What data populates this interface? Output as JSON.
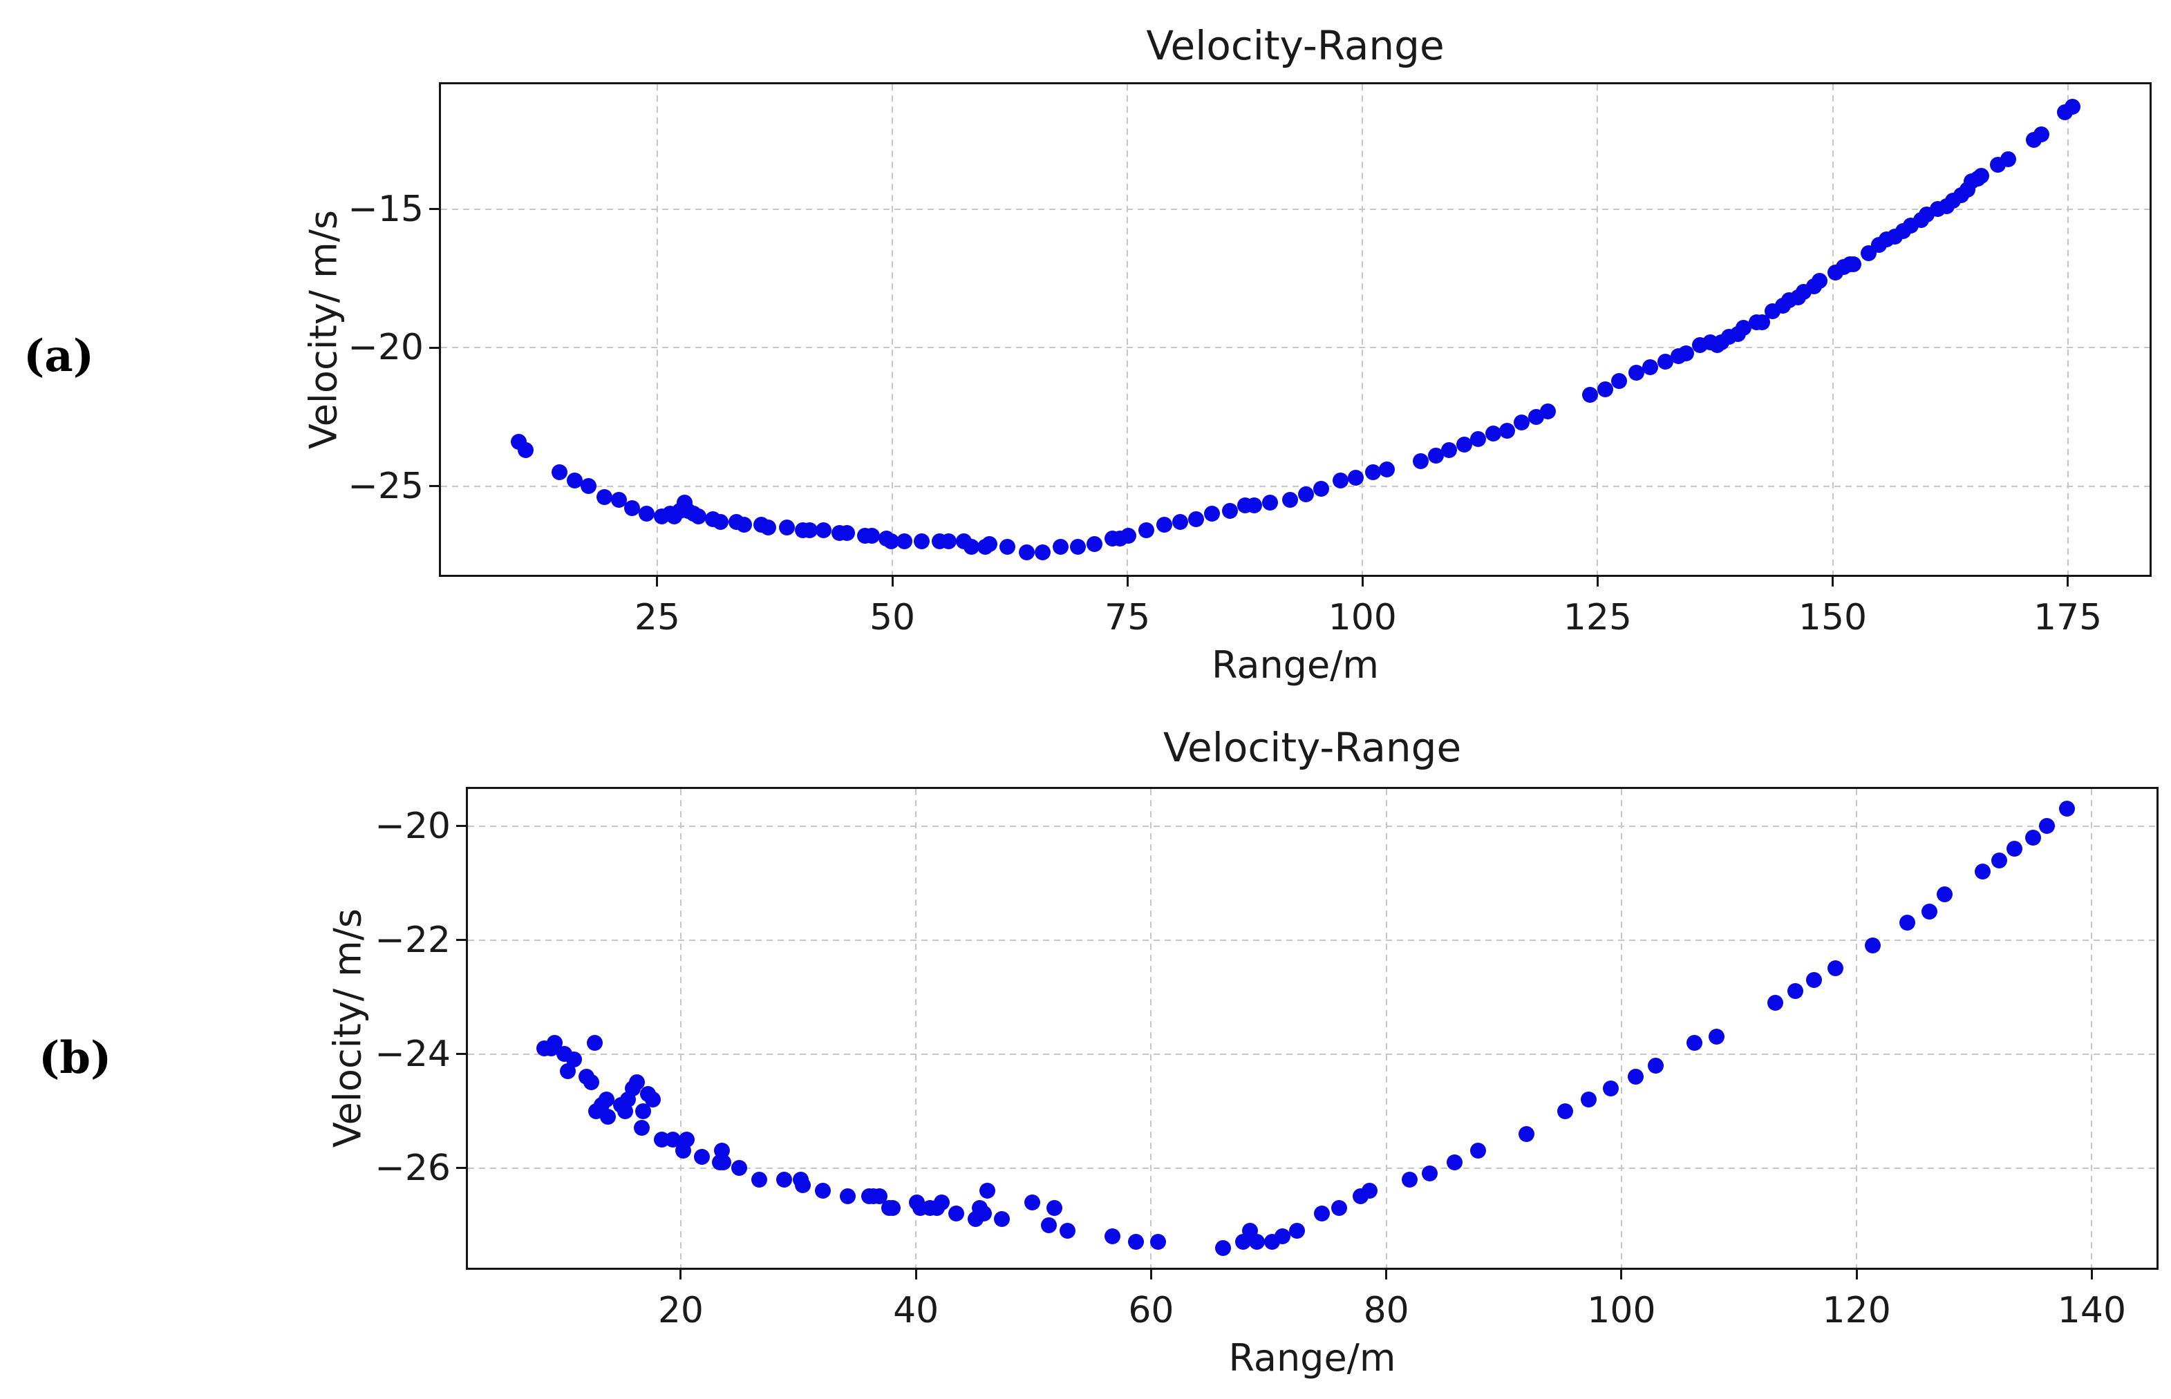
{
  "page": {
    "background": "#ffffff"
  },
  "panels": [
    {
      "label": "(a)"
    },
    {
      "label": "(b)"
    }
  ],
  "chart_data": [
    {
      "type": "scatter",
      "title": "Velocity-Range",
      "xlabel": "Range/m",
      "ylabel": "Velocity/ m/s",
      "legend": null,
      "grid": true,
      "marker_color": "#0707e8",
      "xlim": [
        2.0,
        183.7
      ],
      "ylim": [
        -28.2,
        -10.5
      ],
      "xticks": [
        25,
        50,
        75,
        100,
        125,
        150,
        175
      ],
      "xtick_labels": [
        "25",
        "50",
        "75",
        "100",
        "125",
        "150",
        "175"
      ],
      "yticks": [
        -15,
        -20,
        -25
      ],
      "ytick_labels": [
        "−15",
        "−20",
        "−25"
      ],
      "points": [
        [
          10.3,
          -23.4
        ],
        [
          11.0,
          -23.7
        ],
        [
          14.6,
          -24.5
        ],
        [
          16.2,
          -24.8
        ],
        [
          17.7,
          -25.0
        ],
        [
          19.4,
          -25.4
        ],
        [
          20.9,
          -25.5
        ],
        [
          22.3,
          -25.8
        ],
        [
          23.9,
          -26.0
        ],
        [
          25.5,
          -26.1
        ],
        [
          26.4,
          -26.0
        ],
        [
          26.8,
          -26.1
        ],
        [
          27.4,
          -25.9
        ],
        [
          27.9,
          -25.6
        ],
        [
          28.3,
          -25.9
        ],
        [
          28.9,
          -26.0
        ],
        [
          29.4,
          -26.1
        ],
        [
          30.9,
          -26.2
        ],
        [
          31.7,
          -26.3
        ],
        [
          33.4,
          -26.3
        ],
        [
          34.2,
          -26.4
        ],
        [
          36.1,
          -26.4
        ],
        [
          36.8,
          -26.5
        ],
        [
          38.8,
          -26.5
        ],
        [
          40.5,
          -26.6
        ],
        [
          41.2,
          -26.6
        ],
        [
          42.7,
          -26.6
        ],
        [
          44.4,
          -26.7
        ],
        [
          45.2,
          -26.7
        ],
        [
          47.1,
          -26.8
        ],
        [
          47.8,
          -26.8
        ],
        [
          49.4,
          -26.9
        ],
        [
          49.9,
          -27.0
        ],
        [
          51.3,
          -27.0
        ],
        [
          53.1,
          -27.0
        ],
        [
          55.0,
          -27.0
        ],
        [
          56.0,
          -27.0
        ],
        [
          57.6,
          -27.0
        ],
        [
          58.4,
          -27.2
        ],
        [
          59.9,
          -27.2
        ],
        [
          60.3,
          -27.1
        ],
        [
          62.2,
          -27.2
        ],
        [
          64.3,
          -27.4
        ],
        [
          66.0,
          -27.4
        ],
        [
          67.9,
          -27.2
        ],
        [
          69.7,
          -27.2
        ],
        [
          71.5,
          -27.1
        ],
        [
          73.4,
          -26.9
        ],
        [
          74.2,
          -26.9
        ],
        [
          75.1,
          -26.8
        ],
        [
          77.0,
          -26.6
        ],
        [
          78.9,
          -26.4
        ],
        [
          80.6,
          -26.3
        ],
        [
          82.3,
          -26.2
        ],
        [
          84.0,
          -26.0
        ],
        [
          85.9,
          -25.9
        ],
        [
          87.5,
          -25.7
        ],
        [
          88.5,
          -25.7
        ],
        [
          90.2,
          -25.6
        ],
        [
          92.3,
          -25.5
        ],
        [
          94.0,
          -25.3
        ],
        [
          95.6,
          -25.1
        ],
        [
          97.7,
          -24.8
        ],
        [
          99.3,
          -24.7
        ],
        [
          101.1,
          -24.5
        ],
        [
          102.6,
          -24.4
        ],
        [
          106.2,
          -24.1
        ],
        [
          107.8,
          -23.9
        ],
        [
          109.2,
          -23.7
        ],
        [
          110.8,
          -23.5
        ],
        [
          112.3,
          -23.3
        ],
        [
          113.9,
          -23.1
        ],
        [
          115.4,
          -23.0
        ],
        [
          116.9,
          -22.7
        ],
        [
          118.5,
          -22.5
        ],
        [
          119.7,
          -22.3
        ],
        [
          124.2,
          -21.7
        ],
        [
          125.8,
          -21.5
        ],
        [
          127.3,
          -21.2
        ],
        [
          129.1,
          -20.9
        ],
        [
          130.6,
          -20.7
        ],
        [
          132.2,
          -20.5
        ],
        [
          133.6,
          -20.3
        ],
        [
          134.4,
          -20.2
        ],
        [
          135.9,
          -19.9
        ],
        [
          137.0,
          -19.8
        ],
        [
          137.7,
          -19.9
        ],
        [
          138.2,
          -19.8
        ],
        [
          139.0,
          -19.6
        ],
        [
          139.9,
          -19.5
        ],
        [
          140.5,
          -19.3
        ],
        [
          141.9,
          -19.1
        ],
        [
          142.5,
          -19.1
        ],
        [
          143.6,
          -18.7
        ],
        [
          144.7,
          -18.5
        ],
        [
          145.4,
          -18.3
        ],
        [
          146.3,
          -18.2
        ],
        [
          146.9,
          -18.0
        ],
        [
          148.0,
          -17.8
        ],
        [
          148.6,
          -17.6
        ],
        [
          150.3,
          -17.3
        ],
        [
          151.2,
          -17.1
        ],
        [
          151.8,
          -17.0
        ],
        [
          152.2,
          -17.0
        ],
        [
          153.8,
          -16.6
        ],
        [
          154.9,
          -16.3
        ],
        [
          155.7,
          -16.1
        ],
        [
          156.6,
          -16.0
        ],
        [
          157.5,
          -15.8
        ],
        [
          158.3,
          -15.6
        ],
        [
          159.4,
          -15.4
        ],
        [
          160.0,
          -15.2
        ],
        [
          161.2,
          -15.0
        ],
        [
          162.1,
          -14.9
        ],
        [
          162.8,
          -14.7
        ],
        [
          163.7,
          -14.5
        ],
        [
          164.3,
          -14.3
        ],
        [
          164.8,
          -14.0
        ],
        [
          165.4,
          -13.9
        ],
        [
          165.8,
          -13.8
        ],
        [
          167.6,
          -13.4
        ],
        [
          168.7,
          -13.2
        ],
        [
          171.4,
          -12.5
        ],
        [
          172.2,
          -12.3
        ],
        [
          174.7,
          -11.5
        ],
        [
          175.5,
          -11.3
        ]
      ]
    },
    {
      "type": "scatter",
      "title": "Velocity-Range",
      "xlabel": "Range/m",
      "ylabel": "Velocity/ m/s",
      "legend": null,
      "grid": true,
      "marker_color": "#0707e8",
      "xlim": [
        1.9,
        145.5
      ],
      "ylim": [
        -27.75,
        -19.35
      ],
      "xticks": [
        20,
        40,
        60,
        80,
        100,
        120,
        140
      ],
      "xtick_labels": [
        "20",
        "40",
        "60",
        "80",
        "100",
        "120",
        "140"
      ],
      "yticks": [
        -20,
        -22,
        -24,
        -26
      ],
      "ytick_labels": [
        "−20",
        "−22",
        "−24",
        "−26"
      ],
      "points": [
        [
          8.4,
          -23.9
        ],
        [
          9.0,
          -23.9
        ],
        [
          9.3,
          -23.8
        ],
        [
          10.1,
          -24.0
        ],
        [
          10.4,
          -24.3
        ],
        [
          10.9,
          -24.1
        ],
        [
          12.0,
          -24.4
        ],
        [
          12.4,
          -24.5
        ],
        [
          12.7,
          -23.8
        ],
        [
          12.8,
          -25.0
        ],
        [
          13.3,
          -24.9
        ],
        [
          13.7,
          -24.8
        ],
        [
          13.8,
          -25.1
        ],
        [
          14.9,
          -24.9
        ],
        [
          15.3,
          -25.0
        ],
        [
          15.5,
          -24.8
        ],
        [
          15.9,
          -24.6
        ],
        [
          16.3,
          -24.5
        ],
        [
          16.7,
          -25.3
        ],
        [
          16.8,
          -25.0
        ],
        [
          17.2,
          -24.7
        ],
        [
          17.6,
          -24.8
        ],
        [
          18.4,
          -25.5
        ],
        [
          19.3,
          -25.5
        ],
        [
          20.2,
          -25.7
        ],
        [
          20.5,
          -25.5
        ],
        [
          21.8,
          -25.8
        ],
        [
          23.3,
          -25.9
        ],
        [
          23.5,
          -25.7
        ],
        [
          23.6,
          -25.9
        ],
        [
          25.0,
          -26.0
        ],
        [
          26.7,
          -26.2
        ],
        [
          28.8,
          -26.2
        ],
        [
          30.2,
          -26.2
        ],
        [
          30.4,
          -26.3
        ],
        [
          32.1,
          -26.4
        ],
        [
          34.2,
          -26.5
        ],
        [
          36.0,
          -26.5
        ],
        [
          36.4,
          -26.5
        ],
        [
          36.9,
          -26.5
        ],
        [
          37.7,
          -26.7
        ],
        [
          38.0,
          -26.7
        ],
        [
          40.1,
          -26.6
        ],
        [
          40.4,
          -26.7
        ],
        [
          41.2,
          -26.7
        ],
        [
          41.8,
          -26.7
        ],
        [
          42.2,
          -26.6
        ],
        [
          43.4,
          -26.8
        ],
        [
          45.1,
          -26.9
        ],
        [
          45.4,
          -26.7
        ],
        [
          45.8,
          -26.8
        ],
        [
          46.1,
          -26.4
        ],
        [
          47.3,
          -26.9
        ],
        [
          49.9,
          -26.6
        ],
        [
          51.3,
          -27.0
        ],
        [
          51.8,
          -26.7
        ],
        [
          52.9,
          -27.1
        ],
        [
          56.7,
          -27.2
        ],
        [
          58.7,
          -27.3
        ],
        [
          60.6,
          -27.3
        ],
        [
          66.1,
          -27.4
        ],
        [
          67.8,
          -27.3
        ],
        [
          68.4,
          -27.1
        ],
        [
          69.0,
          -27.3
        ],
        [
          70.3,
          -27.3
        ],
        [
          71.2,
          -27.2
        ],
        [
          72.4,
          -27.1
        ],
        [
          74.5,
          -26.8
        ],
        [
          76.0,
          -26.7
        ],
        [
          77.8,
          -26.5
        ],
        [
          78.6,
          -26.4
        ],
        [
          82.0,
          -26.2
        ],
        [
          83.7,
          -26.1
        ],
        [
          85.8,
          -25.9
        ],
        [
          87.8,
          -25.7
        ],
        [
          91.9,
          -25.4
        ],
        [
          95.2,
          -25.0
        ],
        [
          97.2,
          -24.8
        ],
        [
          99.1,
          -24.6
        ],
        [
          101.2,
          -24.4
        ],
        [
          102.9,
          -24.2
        ],
        [
          106.2,
          -23.8
        ],
        [
          108.1,
          -23.7
        ],
        [
          113.1,
          -23.1
        ],
        [
          114.8,
          -22.9
        ],
        [
          116.4,
          -22.7
        ],
        [
          118.2,
          -22.5
        ],
        [
          121.4,
          -22.1
        ],
        [
          124.3,
          -21.7
        ],
        [
          126.2,
          -21.5
        ],
        [
          127.5,
          -21.2
        ],
        [
          130.7,
          -20.8
        ],
        [
          132.1,
          -20.6
        ],
        [
          133.4,
          -20.4
        ],
        [
          135.0,
          -20.2
        ],
        [
          136.2,
          -20.0
        ],
        [
          137.9,
          -19.7
        ]
      ]
    }
  ]
}
